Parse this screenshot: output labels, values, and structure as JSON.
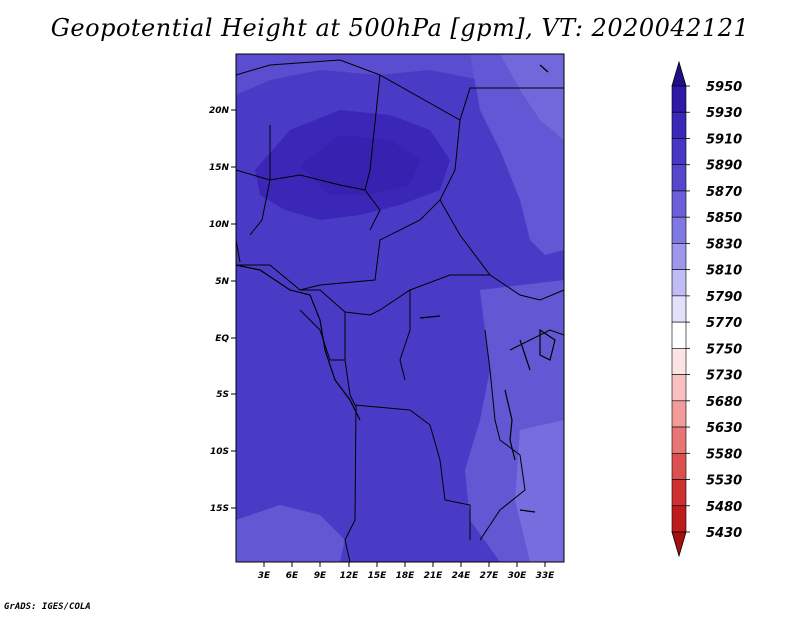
{
  "title": "Geopotential Height at 500hPa [gpm], VT: 2020042121",
  "credit": "GrADS: IGES/COLA",
  "axes": {
    "y_ticks": [
      "20N",
      "15N",
      "10N",
      "5N",
      "EQ",
      "5S",
      "10S",
      "15S"
    ],
    "x_ticks": [
      "3E",
      "6E",
      "9E",
      "12E",
      "15E",
      "18E",
      "21E",
      "24E",
      "27E",
      "30E",
      "33E"
    ]
  },
  "colorbar": {
    "labels": [
      "5950",
      "5930",
      "5910",
      "5890",
      "5870",
      "5850",
      "5830",
      "5810",
      "5790",
      "5770",
      "5750",
      "5730",
      "5680",
      "5630",
      "5580",
      "5530",
      "5480",
      "5430"
    ],
    "colors": [
      "#1e0f8a",
      "#2d1aa6",
      "#3a28b8",
      "#4737c4",
      "#5547cc",
      "#6a5fd8",
      "#8078e3",
      "#9e98ec",
      "#c0bdf4",
      "#e2e0fb",
      "#ffffff",
      "#fde4e4",
      "#f8c0c0",
      "#f19b9b",
      "#e87575",
      "#dd5050",
      "#cf3030",
      "#bd1c1c",
      "#a60f0f"
    ]
  },
  "map_fill": {
    "base": "#4a3bc6",
    "dark": "#3a27b8",
    "light": "#6258d4",
    "lighter": "#7a70de"
  }
}
